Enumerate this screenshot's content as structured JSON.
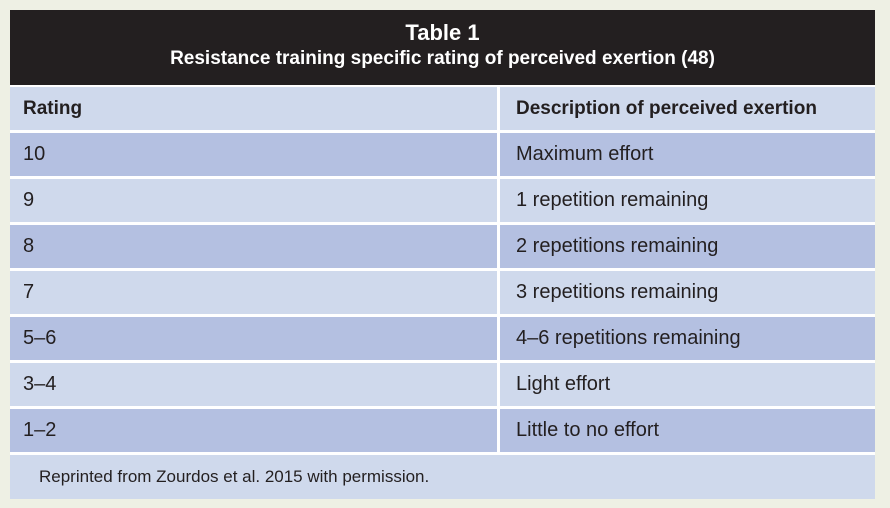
{
  "table": {
    "title": "Table 1",
    "subtitle": "Resistance training specific rating of perceived exertion (48)",
    "headers": [
      "Rating",
      "Description of perceived exertion"
    ],
    "rows": [
      {
        "rating": "10",
        "description": "Maximum effort"
      },
      {
        "rating": "9",
        "description": "1 repetition remaining"
      },
      {
        "rating": "8",
        "description": "2 repetitions remaining"
      },
      {
        "rating": "7",
        "description": "3 repetitions remaining"
      },
      {
        "rating": "5–6",
        "description": "4–6 repetitions remaining"
      },
      {
        "rating": "3–4",
        "description": "Light effort"
      },
      {
        "rating": "1–2",
        "description": "Little to no effort"
      }
    ],
    "footnote": "Reprinted from Zourdos et al. 2015 with permission.",
    "colors": {
      "title_bg": "#231f20",
      "header_bg": "#cfd9ec",
      "row_dark": "#b4c0e1",
      "row_light": "#cfd9ec"
    }
  }
}
